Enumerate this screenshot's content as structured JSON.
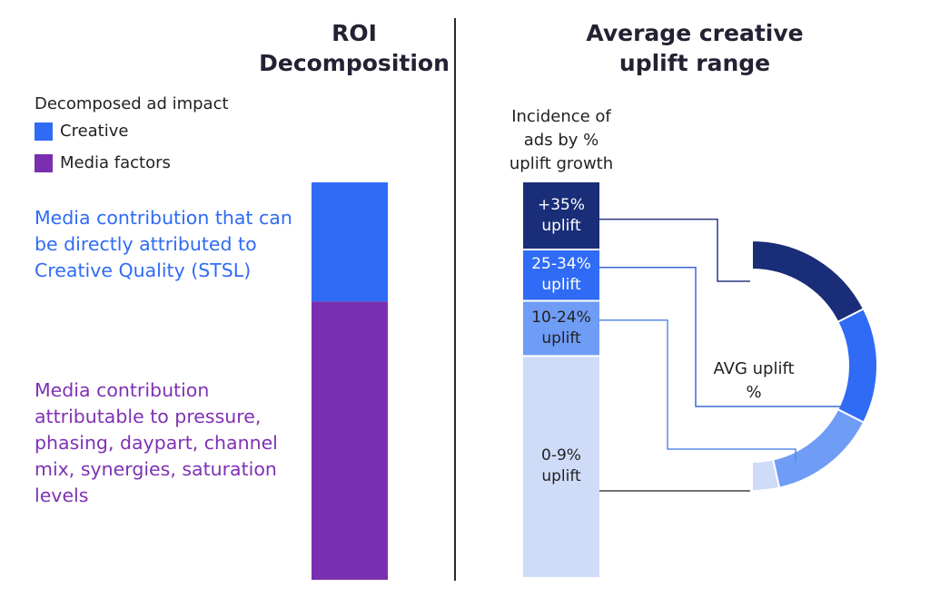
{
  "chart_data": [
    {
      "type": "bar",
      "title": "ROI\nDecomposition",
      "legend_title": "Decomposed ad impact",
      "legend": [
        {
          "name": "Creative",
          "color": "#2f6bf5"
        },
        {
          "name": "Media factors",
          "color": "#7a2fb0"
        }
      ],
      "segments": [
        {
          "name": "Creative",
          "label": "Media contribution that can be directly attributed to Creative Quality (STSL)",
          "value": 30,
          "color": "#2f6bf5"
        },
        {
          "name": "Media factors",
          "label": "Media contribution attributable to pressure, phasing, daypart, channel mix, synergies, saturation levels",
          "value": 70,
          "color": "#7a2fb0"
        }
      ],
      "ylim": [
        0,
        100
      ]
    },
    {
      "type": "bar",
      "title": "Average creative\nuplift range",
      "ylabel": "Incidence of\nads by %\nuplift growth",
      "segments": [
        {
          "label": "+35%\nuplift",
          "value": 17,
          "color": "#1a2d78",
          "text_color": "#ffffff"
        },
        {
          "label": "25-34%\nuplift",
          "value": 13,
          "color": "#2f6bf5",
          "text_color": "#ffffff"
        },
        {
          "label": "10-24%\nuplift",
          "value": 14,
          "color": "#6f9cf5",
          "text_color": "#222222"
        },
        {
          "label": "0-9%\nuplift",
          "value": 56,
          "color": "#cfdcf8",
          "text_color": "#222222"
        }
      ],
      "ylim": [
        0,
        100
      ],
      "arc": {
        "label": "AVG uplift\n%",
        "segments": [
          {
            "value": 35,
            "color": "#1a2d78"
          },
          {
            "value": 30,
            "color": "#2f6bf5"
          },
          {
            "value": 28,
            "color": "#6f9cf5"
          },
          {
            "value": 7,
            "color": "#cfdcf8"
          }
        ]
      }
    }
  ]
}
